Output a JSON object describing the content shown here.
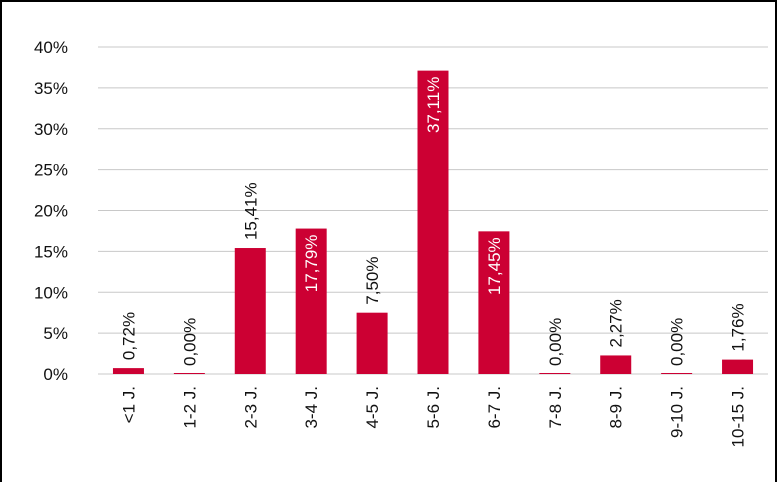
{
  "chart_data": {
    "type": "bar",
    "categories": [
      "<1 J.",
      "1-2 J.",
      "2-3 J.",
      "3-4 J.",
      "4-5 J.",
      "5-6 J.",
      "6-7 J.",
      "7-8 J.",
      "8-9 J.",
      "9-10 J.",
      "10-15 J."
    ],
    "values": [
      0.72,
      0.0,
      15.41,
      17.79,
      7.5,
      37.11,
      17.45,
      0.0,
      2.27,
      0.0,
      1.76
    ],
    "value_labels": [
      "0,72%",
      "0,00%",
      "15,41%",
      "17,79%",
      "7,50%",
      "37,11%",
      "17,45%",
      "0,00%",
      "2,27%",
      "0,00%",
      "1,76%"
    ],
    "label_inside": [
      false,
      false,
      false,
      true,
      false,
      true,
      true,
      false,
      false,
      false,
      false
    ],
    "ylim": [
      0,
      40
    ],
    "yticks": [
      0,
      5,
      10,
      15,
      20,
      25,
      30,
      35,
      40
    ],
    "ytick_labels": [
      "0%",
      "5%",
      "10%",
      "15%",
      "20%",
      "25%",
      "30%",
      "35%",
      "40%"
    ],
    "grid": true,
    "title": "",
    "xlabel": "",
    "ylabel": "",
    "colors": {
      "bar": "#CC0033",
      "grid": "#c8c8c8",
      "inside_label": "#ffffff",
      "outside_label": "#111111"
    }
  }
}
